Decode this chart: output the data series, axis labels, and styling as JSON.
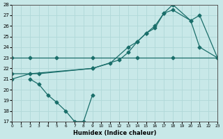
{
  "xlabel": "Humidex (Indice chaleur)",
  "bg_color": "#c8e8e8",
  "line_color": "#1a6e6a",
  "grid_color": "#b0d8d8",
  "xlim": [
    0,
    23
  ],
  "ylim": [
    17,
    28
  ],
  "xticks": [
    0,
    1,
    2,
    3,
    4,
    5,
    6,
    7,
    8,
    9,
    10,
    11,
    12,
    13,
    14,
    15,
    16,
    17,
    18,
    19,
    20,
    21,
    22,
    23
  ],
  "yticks": [
    17,
    18,
    19,
    20,
    21,
    22,
    23,
    24,
    25,
    26,
    27,
    28
  ],
  "line1": {
    "x": [
      0,
      2,
      5,
      9,
      14,
      18,
      23
    ],
    "y": [
      23.0,
      23.0,
      23.0,
      23.0,
      23.0,
      23.0,
      23.0
    ]
  },
  "line2": {
    "x": [
      0,
      2,
      9,
      11,
      13,
      14,
      15,
      16,
      17,
      18,
      20,
      21,
      23
    ],
    "y": [
      21.0,
      21.5,
      22.0,
      22.5,
      24.0,
      24.5,
      25.3,
      26.0,
      27.2,
      28.0,
      26.5,
      24.0,
      23.0
    ]
  },
  "line3": {
    "x": [
      0,
      3,
      9,
      12,
      13,
      14,
      15,
      16,
      17,
      18,
      20,
      21,
      23
    ],
    "y": [
      21.5,
      21.5,
      22.0,
      22.8,
      23.5,
      24.5,
      25.3,
      25.8,
      27.2,
      27.5,
      26.5,
      27.0,
      23.0
    ]
  },
  "line4": {
    "x": [
      2,
      3,
      4,
      5,
      6,
      7,
      8,
      9
    ],
    "y": [
      21.0,
      20.5,
      19.5,
      18.8,
      18.0,
      17.0,
      17.0,
      19.5
    ]
  }
}
